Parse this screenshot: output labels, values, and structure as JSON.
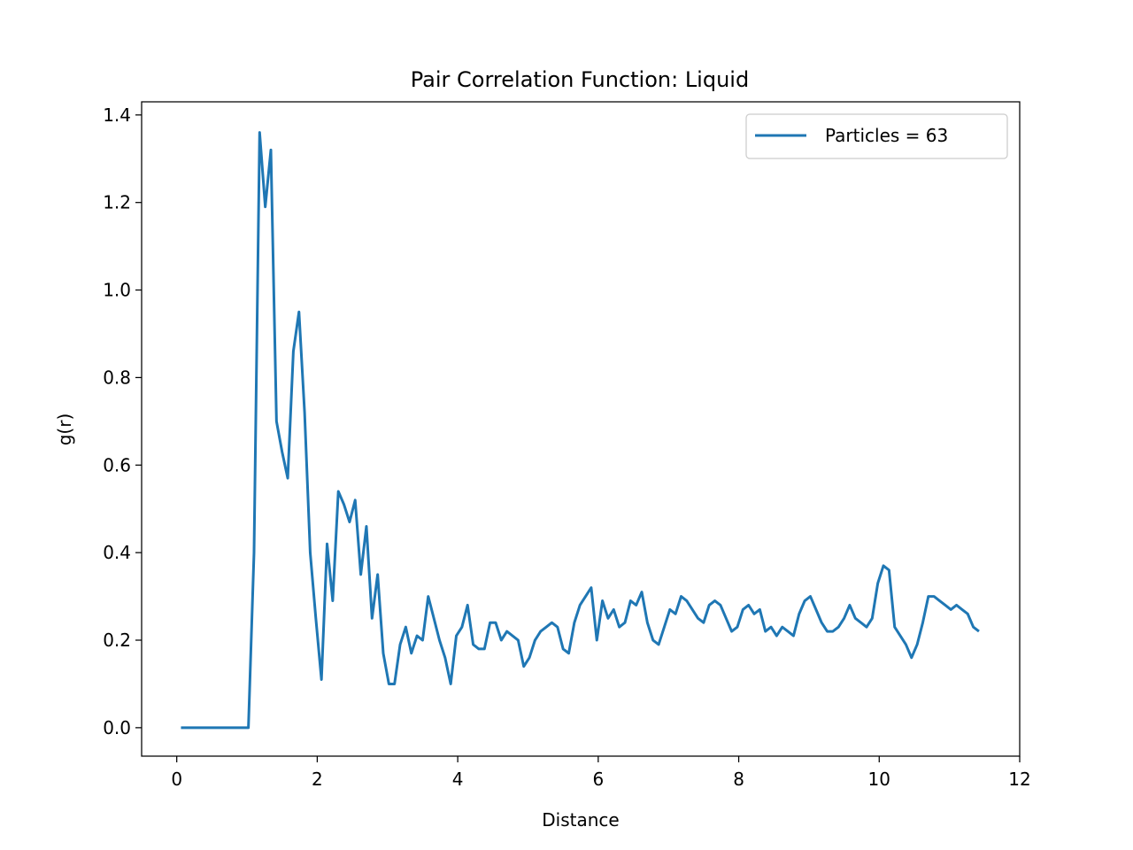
{
  "chart_data": {
    "type": "line",
    "title": "Pair Correlation Function: Liquid",
    "xlabel": "Distance",
    "ylabel": "g(r)",
    "xlim": [
      -0.5,
      12
    ],
    "ylim": [
      -0.065,
      1.43
    ],
    "xticks": [
      0,
      2,
      4,
      6,
      8,
      10,
      12
    ],
    "xtick_labels": [
      "0",
      "2",
      "4",
      "6",
      "8",
      "10",
      "12"
    ],
    "yticks": [
      0.0,
      0.2,
      0.4,
      0.6,
      0.8,
      1.0,
      1.2,
      1.4
    ],
    "ytick_labels": [
      "0.0",
      "0.2",
      "0.4",
      "0.6",
      "0.8",
      "1.0",
      "1.2",
      "1.4"
    ],
    "grid": false,
    "legend_position": "top-right",
    "series": [
      {
        "name": "Particles = 63",
        "color": "#1f77b4",
        "x": [
          0.06,
          0.14,
          0.22,
          0.3,
          0.38,
          0.46,
          0.54,
          0.62,
          0.7,
          0.78,
          0.86,
          0.94,
          1.02,
          1.1,
          1.18,
          1.26,
          1.34,
          1.42,
          1.5,
          1.58,
          1.66,
          1.74,
          1.82,
          1.9,
          1.98,
          2.06,
          2.14,
          2.22,
          2.3,
          2.38,
          2.46,
          2.54,
          2.62,
          2.7,
          2.78,
          2.86,
          2.94,
          3.02,
          3.1,
          3.18,
          3.26,
          3.34,
          3.42,
          3.5,
          3.58,
          3.66,
          3.74,
          3.82,
          3.9,
          3.98,
          4.06,
          4.14,
          4.22,
          4.3,
          4.38,
          4.46,
          4.54,
          4.62,
          4.7,
          4.78,
          4.86,
          4.94,
          5.02,
          5.1,
          5.18,
          5.26,
          5.34,
          5.42,
          5.5,
          5.58,
          5.66,
          5.74,
          5.82,
          5.9,
          5.98,
          6.06,
          6.14,
          6.22,
          6.3,
          6.38,
          6.46,
          6.54,
          6.62,
          6.7,
          6.78,
          6.86,
          6.94,
          7.02,
          7.1,
          7.18,
          7.26,
          7.34,
          7.42,
          7.5,
          7.58,
          7.66,
          7.74,
          7.82,
          7.9,
          7.98,
          8.06,
          8.14,
          8.22,
          8.3,
          8.38,
          8.46,
          8.54,
          8.62,
          8.7,
          8.78,
          8.86,
          8.94,
          9.02,
          9.1,
          9.18,
          9.26,
          9.34,
          9.42,
          9.5,
          9.58,
          9.66,
          9.74,
          9.82,
          9.9,
          9.98,
          10.06,
          10.14,
          10.22,
          10.3,
          10.38,
          10.46,
          10.54,
          10.62,
          10.7,
          10.78,
          10.86,
          10.94,
          11.02,
          11.1,
          11.18,
          11.26,
          11.34,
          11.42
        ],
        "values": [
          0.0,
          0.0,
          0.0,
          0.0,
          0.0,
          0.0,
          0.0,
          0.0,
          0.0,
          0.0,
          0.0,
          0.0,
          0.0,
          0.4,
          1.36,
          1.19,
          1.32,
          0.7,
          0.63,
          0.57,
          0.86,
          0.95,
          0.72,
          0.4,
          0.25,
          0.11,
          0.42,
          0.29,
          0.54,
          0.51,
          0.47,
          0.52,
          0.35,
          0.46,
          0.25,
          0.35,
          0.17,
          0.1,
          0.1,
          0.19,
          0.23,
          0.17,
          0.21,
          0.2,
          0.3,
          0.25,
          0.2,
          0.16,
          0.1,
          0.21,
          0.23,
          0.28,
          0.19,
          0.18,
          0.18,
          0.24,
          0.24,
          0.2,
          0.22,
          0.21,
          0.2,
          0.14,
          0.16,
          0.2,
          0.22,
          0.23,
          0.24,
          0.23,
          0.18,
          0.17,
          0.24,
          0.28,
          0.3,
          0.32,
          0.2,
          0.29,
          0.25,
          0.27,
          0.23,
          0.24,
          0.29,
          0.28,
          0.31,
          0.24,
          0.2,
          0.19,
          0.23,
          0.27,
          0.26,
          0.3,
          0.29,
          0.27,
          0.25,
          0.24,
          0.28,
          0.29,
          0.28,
          0.25,
          0.22,
          0.23,
          0.27,
          0.28,
          0.26,
          0.27,
          0.22,
          0.23,
          0.21,
          0.23,
          0.22,
          0.21,
          0.26,
          0.29,
          0.3,
          0.27,
          0.24,
          0.22,
          0.22,
          0.23,
          0.25,
          0.28,
          0.25,
          0.24,
          0.23,
          0.25,
          0.33,
          0.37,
          0.36,
          0.23,
          0.21,
          0.19,
          0.16,
          0.19,
          0.24,
          0.3,
          0.3,
          0.29,
          0.28,
          0.27,
          0.28,
          0.27,
          0.26,
          0.23,
          0.22
        ]
      }
    ]
  }
}
